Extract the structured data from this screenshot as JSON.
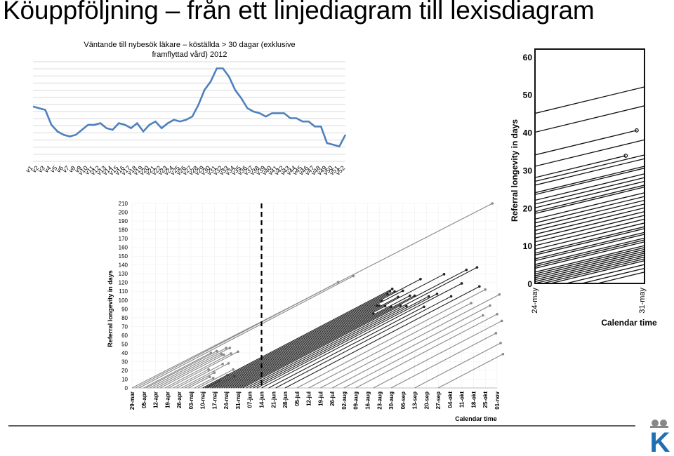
{
  "slide": {
    "title": "Köuppföljning – från ett linjediagram till lexisdiagram",
    "logo_letter": "K",
    "colors": {
      "line": "#4f81bd",
      "grid": "#d9d9d9",
      "logo": "#1f6fb5",
      "rule": "#000000"
    }
  },
  "chart_data": [
    {
      "type": "line",
      "title": "Väntande till nybesök läkare – köställda > 30 dagar (exklusive framflyttad vård) 2012",
      "title_lines": [
        "Väntande till nybesök läkare – köställda > 30 dagar (exklusive",
        "framflyttad vård) 2012"
      ],
      "categories": [
        "v1",
        "v2",
        "v3",
        "v4",
        "v5",
        "v6",
        "v7",
        "v8",
        "v9",
        "v10",
        "v11",
        "v12",
        "v13",
        "v14",
        "v15",
        "v16",
        "v17",
        "v18",
        "v19",
        "v20",
        "v21",
        "v22",
        "v23",
        "v24",
        "v25",
        "v26",
        "v27",
        "v28",
        "v29",
        "v30",
        "v31",
        "v32",
        "v33",
        "v34",
        "v35",
        "v36",
        "v37",
        "v38",
        "v39",
        "v40",
        "v41",
        "v42",
        "v43",
        "v44",
        "v45",
        "v46",
        "v47",
        "v48",
        "v49",
        "v50",
        "v51",
        "v52"
      ],
      "values": [
        93,
        92,
        91,
        82,
        78,
        76,
        75,
        76,
        79,
        82,
        82,
        83,
        80,
        79,
        83,
        82,
        80,
        83,
        78,
        82,
        84,
        80,
        83,
        85,
        84,
        85,
        87,
        94,
        103,
        108,
        116,
        116,
        111,
        103,
        98,
        92,
        90,
        89,
        87,
        89,
        89,
        89,
        86,
        86,
        84,
        84,
        81,
        81,
        71,
        70,
        69,
        76
      ],
      "ylim": [
        60,
        120
      ],
      "grid": true,
      "gridlines": 14,
      "legend": "none",
      "color": "#4f81bd"
    },
    {
      "type": "scatter",
      "ylabel": "Referral longevity in days",
      "xlabel": "Calendar time",
      "yticks": [
        0,
        10,
        20,
        30,
        40,
        50,
        60,
        70,
        80,
        90,
        100,
        110,
        120,
        130,
        140,
        150,
        160,
        170,
        180,
        190,
        200,
        210
      ],
      "xticks": [
        "29-mar",
        "05-apr",
        "12-apr",
        "19-apr",
        "26-apr",
        "03-maj",
        "10-maj",
        "17-maj",
        "24-maj",
        "31-maj",
        "07-jun",
        "14-jun",
        "21-jun",
        "28-jun",
        "05-jul",
        "12-jul",
        "19-jul",
        "26-jul",
        "02-aug",
        "09-aug",
        "16-aug",
        "23-aug",
        "30-aug",
        "06-sep",
        "13-sep",
        "20-sep",
        "27-sep",
        "04-okt",
        "11-okt",
        "18-okt",
        "25-okt",
        "01-nov"
      ],
      "ylim": [
        0,
        210
      ],
      "reference_line": "14-jun",
      "lifelines": [
        {
          "start": 0.0,
          "end": 30.6,
          "color": "#888888"
        },
        {
          "start": 0.3,
          "end": 17.5,
          "color": "#888888"
        },
        {
          "start": 0.6,
          "end": 18.8,
          "color": "#888888"
        },
        {
          "start": 1.0,
          "end": 6.7,
          "color": "#888888"
        },
        {
          "start": 1.2,
          "end": 7.2,
          "color": "#888888"
        },
        {
          "start": 1.5,
          "end": 8.0,
          "color": "#888888"
        },
        {
          "start": 1.8,
          "end": 8.3,
          "color": "#888888"
        },
        {
          "start": 2.1,
          "end": 7.6,
          "color": "#888888"
        },
        {
          "start": 2.4,
          "end": 7.8,
          "color": "#888888"
        },
        {
          "start": 2.8,
          "end": 8.4,
          "color": "#888888"
        },
        {
          "start": 3.1,
          "end": 9.0,
          "color": "#888888"
        },
        {
          "start": 3.5,
          "end": 6.5,
          "color": "#888888"
        },
        {
          "start": 3.8,
          "end": 7.7,
          "color": "#888888"
        },
        {
          "start": 4.2,
          "end": 8.2,
          "color": "#888888"
        },
        {
          "start": 4.5,
          "end": 7.0,
          "color": "#888888"
        },
        {
          "start": 4.8,
          "end": 6.6,
          "color": "#888888"
        },
        {
          "start": 5.3,
          "end": 6.9,
          "color": "#888888"
        },
        {
          "start": 5.6,
          "end": 8.6,
          "color": "#888888"
        },
        {
          "start": 6.0,
          "end": 8.1,
          "color": "#888888"
        },
        {
          "start": 6.3,
          "end": 7.4,
          "color": "#888888"
        },
        {
          "start": 6.8,
          "end": 8.7,
          "color": "#888888"
        },
        {
          "start": 6.0,
          "end": 22.1,
          "color": "#222222"
        },
        {
          "start": 6.2,
          "end": 21.9,
          "color": "#222222"
        },
        {
          "start": 6.4,
          "end": 21.7,
          "color": "#222222"
        },
        {
          "start": 6.6,
          "end": 22.3,
          "color": "#222222"
        },
        {
          "start": 6.8,
          "end": 24.5,
          "color": "#222222"
        },
        {
          "start": 7.0,
          "end": 21.2,
          "color": "#222222"
        },
        {
          "start": 7.2,
          "end": 23.0,
          "color": "#222222"
        },
        {
          "start": 7.4,
          "end": 20.8,
          "color": "#222222"
        },
        {
          "start": 7.6,
          "end": 21.0,
          "color": "#222222"
        },
        {
          "start": 7.8,
          "end": 22.6,
          "color": "#222222"
        },
        {
          "start": 8.0,
          "end": 26.5,
          "color": "#222222"
        },
        {
          "start": 8.2,
          "end": 21.5,
          "color": "#222222"
        },
        {
          "start": 8.4,
          "end": 20.5,
          "color": "#222222"
        },
        {
          "start": 8.6,
          "end": 23.6,
          "color": "#222222"
        },
        {
          "start": 8.8,
          "end": 22.0,
          "color": "#222222"
        },
        {
          "start": 9.0,
          "end": 24.0,
          "color": "#222222"
        },
        {
          "start": 9.2,
          "end": 28.4,
          "color": "#222222"
        },
        {
          "start": 9.4,
          "end": 22.8,
          "color": "#222222"
        },
        {
          "start": 9.7,
          "end": 29.3,
          "color": "#222222"
        },
        {
          "start": 10.0,
          "end": 23.3,
          "color": "#222222"
        },
        {
          "start": 10.3,
          "end": 25.2,
          "color": "#222222"
        },
        {
          "start": 10.6,
          "end": 25.9,
          "color": "#222222"
        },
        {
          "start": 11.0,
          "end": 28.0,
          "color": "#222222"
        },
        {
          "start": 11.6,
          "end": 24.8,
          "color": "#222222"
        },
        {
          "start": 12.2,
          "end": 27.1,
          "color": "#222222"
        },
        {
          "start": 13.0,
          "end": 29.5,
          "color": "#222222"
        },
        {
          "start": 14.0,
          "end": 30.0,
          "color": "#888888"
        },
        {
          "start": 15.0,
          "end": 28.8,
          "color": "#888888"
        },
        {
          "start": 16.0,
          "end": 31.2,
          "color": "#888888"
        },
        {
          "start": 17.0,
          "end": 30.4,
          "color": "#888888"
        },
        {
          "start": 18.0,
          "end": 29.8,
          "color": "#888888"
        },
        {
          "start": 19.0,
          "end": 31.0,
          "color": "#888888"
        },
        {
          "start": 20.5,
          "end": 31.4,
          "color": "#888888"
        },
        {
          "start": 22.0,
          "end": 30.9,
          "color": "#888888"
        },
        {
          "start": 24.0,
          "end": 31.3,
          "color": "#888888"
        },
        {
          "start": 26.0,
          "end": 31.5,
          "color": "#888888"
        }
      ]
    },
    {
      "type": "scatter",
      "ylabel": "Referral longevity in days",
      "xlabel": "Calendar time",
      "yticks": [
        0,
        10,
        20,
        30,
        40,
        50,
        60
      ],
      "xticks": [
        "24-may",
        "31-may"
      ],
      "ylim": [
        0,
        62
      ],
      "xlim_days": 7,
      "lifelines": [
        {
          "start": -40,
          "end": 7,
          "color": "#111111"
        },
        {
          "start": -45,
          "end": 7,
          "color": "#111111"
        },
        {
          "start": -34,
          "end": 6.5,
          "color": "#111111"
        },
        {
          "start": -31,
          "end": 7,
          "color": "#111111"
        },
        {
          "start": -28,
          "end": 5.8,
          "color": "#111111"
        },
        {
          "start": -27,
          "end": 7,
          "color": "#111111"
        },
        {
          "start": -26,
          "end": 7,
          "color": "#111111"
        },
        {
          "start": -24,
          "end": 7,
          "color": "#111111"
        },
        {
          "start": -23.5,
          "end": 7,
          "color": "#111111"
        },
        {
          "start": -22,
          "end": 7,
          "color": "#111111"
        },
        {
          "start": -21,
          "end": 7,
          "color": "#111111"
        },
        {
          "start": -20,
          "end": 7,
          "color": "#111111"
        },
        {
          "start": -19,
          "end": 7,
          "color": "#111111"
        },
        {
          "start": -18.5,
          "end": 7,
          "color": "#111111"
        },
        {
          "start": -17,
          "end": 7,
          "color": "#111111"
        },
        {
          "start": -16,
          "end": 7,
          "color": "#111111"
        },
        {
          "start": -15,
          "end": 7,
          "color": "#111111"
        },
        {
          "start": -14,
          "end": 7,
          "color": "#111111"
        },
        {
          "start": -13,
          "end": 7,
          "color": "#111111"
        },
        {
          "start": -12,
          "end": 7,
          "color": "#111111"
        },
        {
          "start": -11,
          "end": 7,
          "color": "#111111"
        },
        {
          "start": -10,
          "end": 7,
          "color": "#111111"
        },
        {
          "start": -9,
          "end": 7,
          "color": "#111111"
        },
        {
          "start": -8,
          "end": 7,
          "color": "#111111"
        },
        {
          "start": -7.5,
          "end": 7,
          "color": "#111111"
        },
        {
          "start": -6.5,
          "end": 7,
          "color": "#111111"
        },
        {
          "start": -6,
          "end": 7,
          "color": "#111111"
        },
        {
          "start": -5,
          "end": 7,
          "color": "#111111"
        },
        {
          "start": -4.5,
          "end": 7,
          "color": "#111111"
        },
        {
          "start": -4,
          "end": 7,
          "color": "#111111"
        },
        {
          "start": -3,
          "end": 7,
          "color": "#111111"
        },
        {
          "start": -2.5,
          "end": 7,
          "color": "#111111"
        },
        {
          "start": -2,
          "end": 7,
          "color": "#111111"
        },
        {
          "start": -1.5,
          "end": 7,
          "color": "#111111"
        },
        {
          "start": -1,
          "end": 7,
          "color": "#111111"
        },
        {
          "start": -0.5,
          "end": 7,
          "color": "#111111"
        },
        {
          "start": 0,
          "end": 7,
          "color": "#111111"
        },
        {
          "start": 0.5,
          "end": 7,
          "color": "#111111"
        },
        {
          "start": 1,
          "end": 7,
          "color": "#111111"
        },
        {
          "start": 2,
          "end": 7,
          "color": "#111111"
        },
        {
          "start": 3,
          "end": 7,
          "color": "#111111"
        },
        {
          "start": 4,
          "end": 7,
          "color": "#111111"
        }
      ]
    }
  ]
}
